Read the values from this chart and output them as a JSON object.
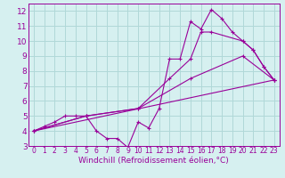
{
  "title": "",
  "xlabel": "Windchill (Refroidissement éolien,°C)",
  "ylabel": "",
  "xlim": [
    -0.5,
    23.5
  ],
  "ylim": [
    3,
    12.5
  ],
  "xticks": [
    0,
    1,
    2,
    3,
    4,
    5,
    6,
    7,
    8,
    9,
    10,
    11,
    12,
    13,
    14,
    15,
    16,
    17,
    18,
    19,
    20,
    21,
    22,
    23
  ],
  "yticks": [
    3,
    4,
    5,
    6,
    7,
    8,
    9,
    10,
    11,
    12
  ],
  "background_color": "#d6f0f0",
  "grid_color": "#b0d8d8",
  "line_color": "#990099",
  "series1_x": [
    0,
    1,
    2,
    3,
    4,
    5,
    6,
    7,
    8,
    9,
    10,
    11,
    12,
    13,
    14,
    15,
    16,
    17,
    18,
    19,
    20,
    21,
    22,
    23
  ],
  "series1_y": [
    4.0,
    4.3,
    4.6,
    5.0,
    5.0,
    5.0,
    4.0,
    3.5,
    3.5,
    2.9,
    4.6,
    4.2,
    5.5,
    8.8,
    8.8,
    11.3,
    10.8,
    12.1,
    11.5,
    10.6,
    10.0,
    9.4,
    8.3,
    7.4
  ],
  "series2_x": [
    0,
    5,
    10,
    13,
    15,
    16,
    17,
    20,
    21,
    22,
    23
  ],
  "series2_y": [
    4.0,
    5.0,
    5.5,
    7.5,
    8.8,
    10.6,
    10.6,
    10.0,
    9.4,
    8.3,
    7.4
  ],
  "series3_x": [
    0,
    5,
    10,
    15,
    20,
    23
  ],
  "series3_y": [
    4.0,
    5.0,
    5.5,
    7.5,
    9.0,
    7.4
  ],
  "series4_x": [
    0,
    23
  ],
  "series4_y": [
    4.0,
    7.4
  ],
  "font_size_xlabel": 6.5,
  "font_size_ytick": 6.5,
  "font_size_xtick": 5.5
}
